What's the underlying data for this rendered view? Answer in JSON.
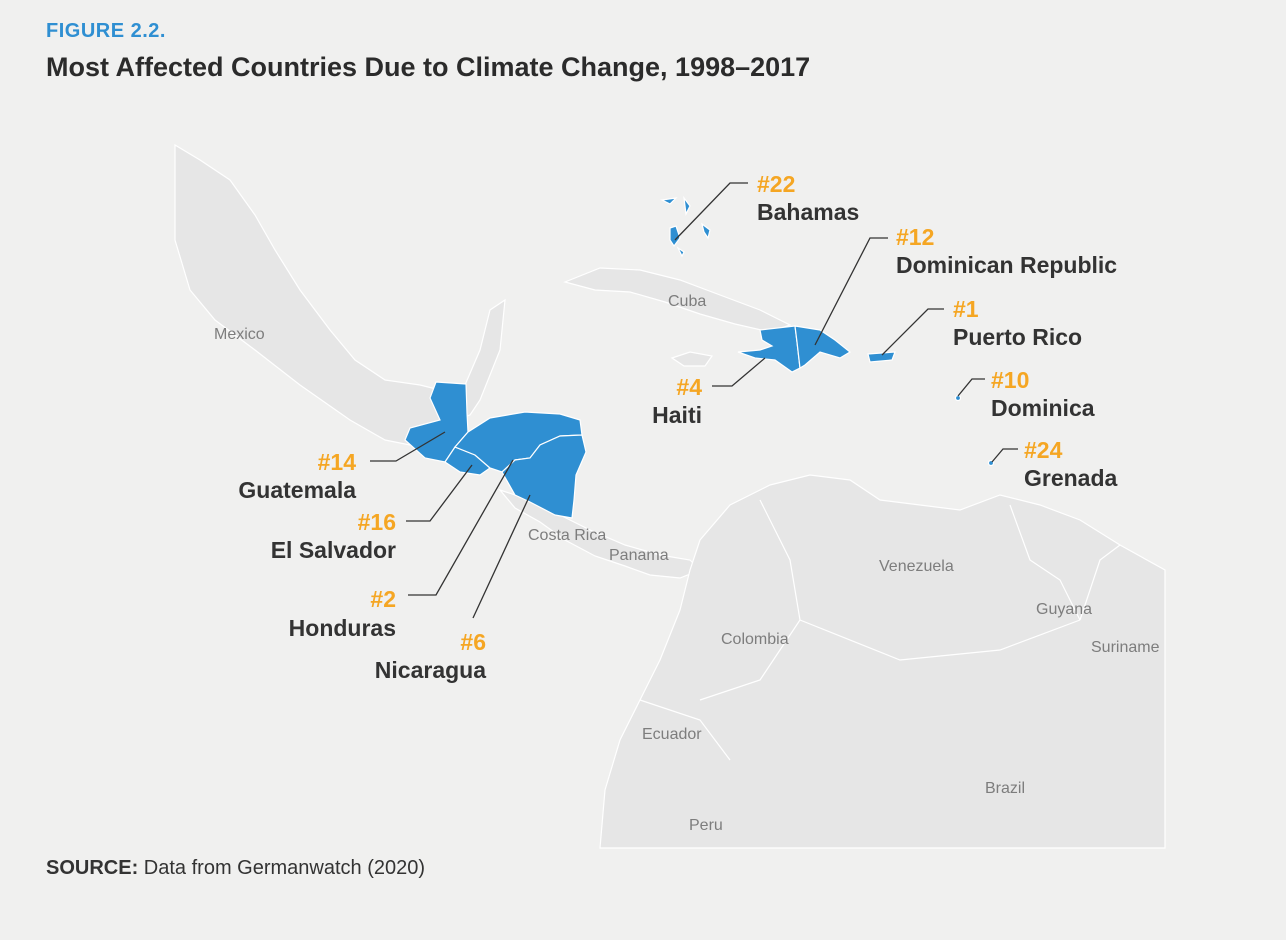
{
  "figure_label": "FIGURE 2.2.",
  "title": "Most Affected Countries Due to Climate Change, 1998–2017",
  "source": {
    "prefix": "SOURCE:",
    "text": "Data from Germanwatch (2020)"
  },
  "colors": {
    "highlight": "#2f8fd2",
    "rank": "#f5a623",
    "base_land": "#e6e6e6",
    "background": "#f0f0ef"
  },
  "highlighted_countries": [
    {
      "rank": "#22",
      "name": "Bahamas"
    },
    {
      "rank": "#12",
      "name": "Dominican Republic"
    },
    {
      "rank": "#1",
      "name": "Puerto Rico"
    },
    {
      "rank": "#4",
      "name": "Haiti"
    },
    {
      "rank": "#10",
      "name": "Dominica"
    },
    {
      "rank": "#24",
      "name": "Grenada"
    },
    {
      "rank": "#14",
      "name": "Guatemala"
    },
    {
      "rank": "#16",
      "name": "El Salvador"
    },
    {
      "rank": "#2",
      "name": "Honduras"
    },
    {
      "rank": "#6",
      "name": "Nicaragua"
    }
  ],
  "base_map_labels": [
    "Mexico",
    "Cuba",
    "Costa Rica",
    "Panama",
    "Venezuela",
    "Guyana",
    "Suriname",
    "Colombia",
    "Ecuador",
    "Brazil",
    "Peru"
  ]
}
